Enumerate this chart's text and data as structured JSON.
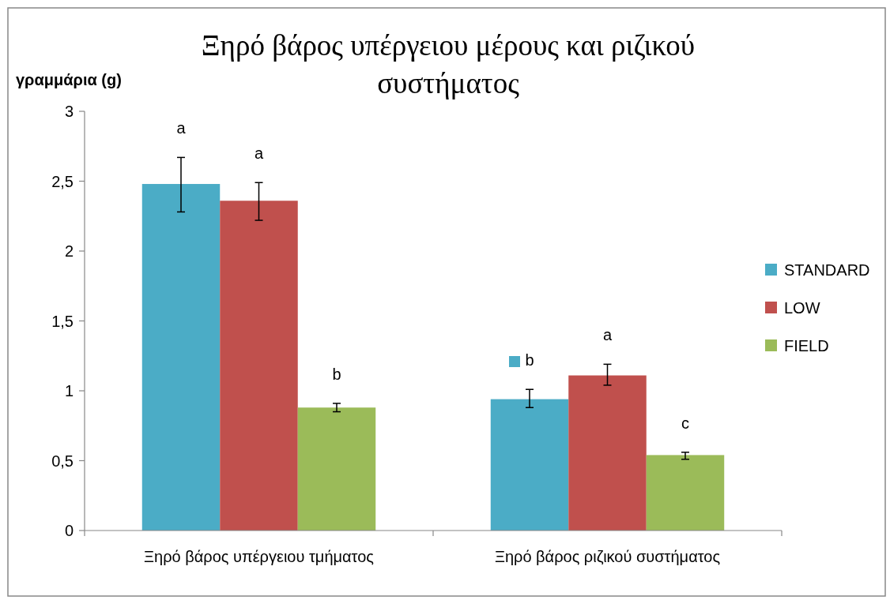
{
  "chart_data": {
    "type": "bar",
    "title": "Ξηρό βάρος υπέργειου μέρους και ριζικού συστήματος",
    "ylabel": "γραμμάρια (g)",
    "categories": [
      "Ξηρό βάρος υπέργειου τμήματος",
      "Ξηρό βάρος ριζικού συστήματος"
    ],
    "series": [
      {
        "name": "STANDARD",
        "color": "#4bacc6",
        "values": [
          2.48,
          0.94
        ],
        "errors": [
          [
            2.28,
            2.67
          ],
          [
            0.88,
            1.01
          ]
        ],
        "value_labels": [
          "a",
          "b"
        ]
      },
      {
        "name": "LOW",
        "color": "#c0504d",
        "values": [
          2.36,
          1.11
        ],
        "errors": [
          [
            2.22,
            2.49
          ],
          [
            1.04,
            1.19
          ]
        ],
        "value_labels": [
          "a",
          "a"
        ]
      },
      {
        "name": "FIELD",
        "color": "#9bbb59",
        "values": [
          0.88,
          0.54
        ],
        "errors": [
          [
            0.85,
            0.91
          ],
          [
            0.51,
            0.56
          ]
        ],
        "value_labels": [
          "b",
          "c"
        ]
      }
    ],
    "ylim": [
      0,
      3
    ],
    "yticks": [
      0,
      {
        "value": 0.5,
        "label": "0,5"
      },
      1,
      {
        "value": 1.5,
        "label": "1,5"
      },
      2,
      {
        "value": 2.5,
        "label": "2,5"
      },
      3
    ],
    "grid": false,
    "legend": "right"
  }
}
